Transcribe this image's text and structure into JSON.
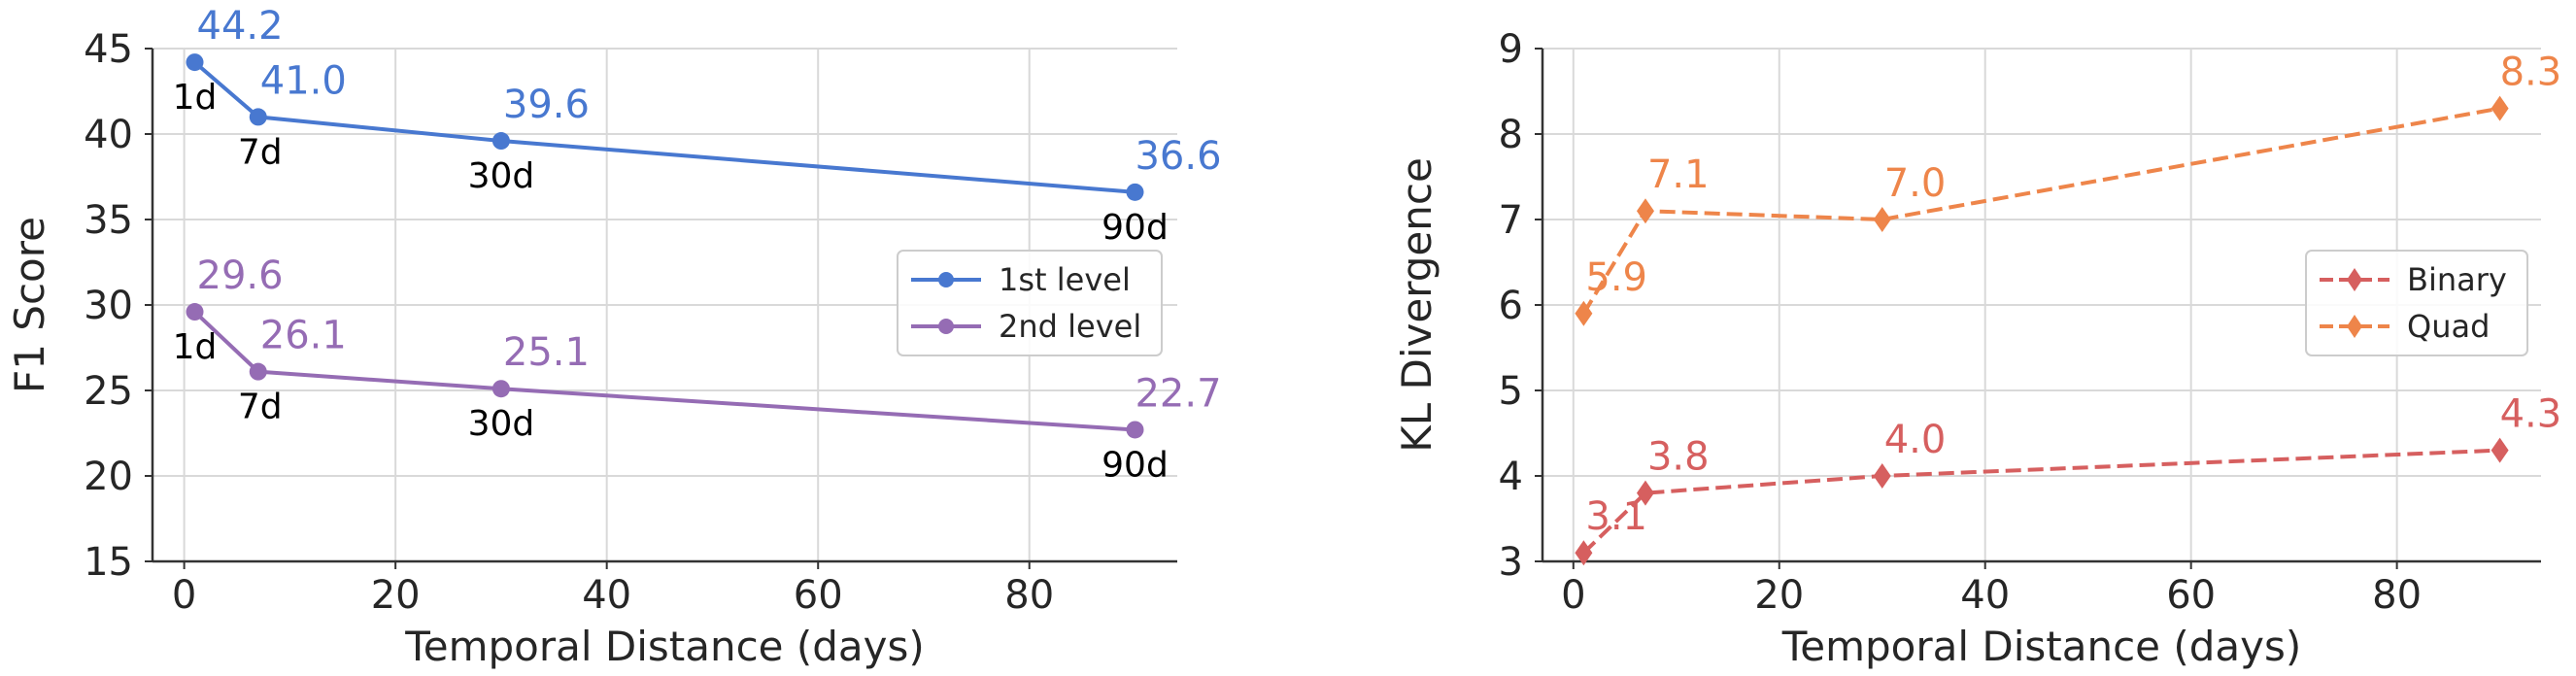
{
  "chart_data": [
    {
      "type": "line",
      "xlabel": "Temporal Distance (days)",
      "ylabel": "F1 Score",
      "xlim": [
        -3,
        94
      ],
      "ylim": [
        15,
        45
      ],
      "xticks": [
        0,
        20,
        40,
        60,
        80
      ],
      "yticks": [
        15,
        20,
        25,
        30,
        35,
        40,
        45
      ],
      "grid": true,
      "legend_position": "center-right",
      "x": [
        1,
        7,
        30,
        90
      ],
      "series": [
        {
          "name": "1st level",
          "values": [
            44.2,
            41.0,
            39.6,
            36.6
          ],
          "value_labels": [
            "44.2",
            "41.0",
            "39.6",
            "36.6"
          ],
          "color": "#4878d0",
          "marker": "circle",
          "dash": "solid"
        },
        {
          "name": "2nd level",
          "values": [
            29.6,
            26.1,
            25.1,
            22.7
          ],
          "value_labels": [
            "29.6",
            "26.1",
            "25.1",
            "22.7"
          ],
          "color": "#956cb4",
          "marker": "circle",
          "dash": "solid"
        }
      ],
      "point_labels": [
        "1d",
        "7d",
        "30d",
        "90d"
      ]
    },
    {
      "type": "line",
      "xlabel": "Temporal Distance (days)",
      "ylabel": "KL Divergence",
      "xlim": [
        -3,
        94
      ],
      "ylim": [
        3,
        9
      ],
      "xticks": [
        0,
        20,
        40,
        60,
        80
      ],
      "yticks": [
        3,
        4,
        5,
        6,
        7,
        8,
        9
      ],
      "grid": true,
      "legend_position": "center-right",
      "x": [
        1,
        7,
        30,
        90
      ],
      "series": [
        {
          "name": "Binary",
          "values": [
            3.1,
            3.8,
            4.0,
            4.3
          ],
          "value_labels": [
            "3.1",
            "3.8",
            "4.0",
            "4.3"
          ],
          "color": "#d65f5f",
          "marker": "diamond",
          "dash": "dashed"
        },
        {
          "name": "Quad",
          "values": [
            5.9,
            7.1,
            7.0,
            8.3
          ],
          "value_labels": [
            "5.9",
            "7.1",
            "7.0",
            "8.3"
          ],
          "color": "#ee854a",
          "marker": "diamond",
          "dash": "dashed"
        }
      ]
    }
  ]
}
